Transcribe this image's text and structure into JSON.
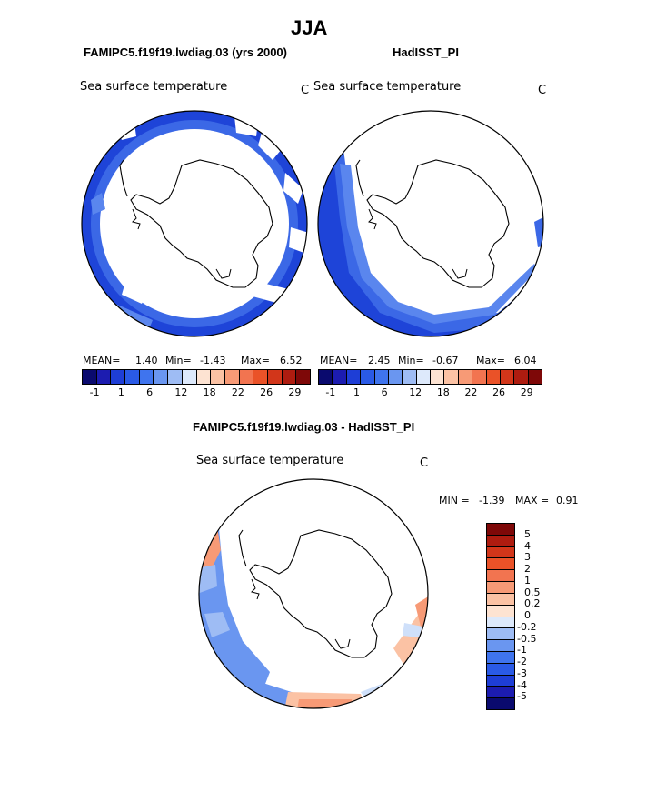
{
  "title": "JJA",
  "panel_left": {
    "header": "FAMIPC5.f19f19.lwdiag.03 (yrs 2000)",
    "field": "Sea surface temperature",
    "units": "C",
    "mean_label": "MEAN=",
    "mean": "1.40",
    "min_label": "Min=",
    "min": "-1.43",
    "max_label": "Max=",
    "max": "6.52"
  },
  "panel_right": {
    "header": "HadISST_PI",
    "field": "Sea surface temperature",
    "units": "C",
    "mean_label": "MEAN=",
    "mean": "2.45",
    "min_label": "Min=",
    "min": "-0.67",
    "max_label": "Max=",
    "max": "6.04"
  },
  "panel_diff": {
    "header": "FAMIPC5.f19f19.lwdiag.03 - HadISST_PI",
    "field": "Sea surface temperature",
    "units": "C",
    "min_label": "MIN =",
    "min": "-1.39",
    "max_label": "MAX =",
    "max": "0.91"
  },
  "abs_colorbar": {
    "colors": [
      "#0a0a6e",
      "#1c1cb0",
      "#1e3ed6",
      "#2a5ae6",
      "#3f74ee",
      "#6a96f0",
      "#9ebcf4",
      "#dde9fb",
      "#fde3d2",
      "#fbc2a4",
      "#f79a76",
      "#f27450",
      "#ea5228",
      "#d2361a",
      "#ae1c10",
      "#7e0808"
    ],
    "ticks": [
      "-1",
      "1",
      "6",
      "12",
      "18",
      "22",
      "26",
      "29"
    ]
  },
  "diff_colorbar": {
    "colors": [
      "#7e0808",
      "#ae1c10",
      "#d2361a",
      "#ea5228",
      "#f27450",
      "#f79a76",
      "#fbc2a4",
      "#fde3d2",
      "#dde9fb",
      "#9ebcf4",
      "#6a96f0",
      "#3f74ee",
      "#2a5ae6",
      "#1e3ed6",
      "#1c1cb0",
      "#0a0a6e"
    ],
    "ticks": [
      "5",
      "4",
      "3",
      "2",
      "1",
      "0.5",
      "0.2",
      "0",
      "-0.2",
      "-0.5",
      "-1",
      "-2",
      "-3",
      "-4",
      "-5"
    ]
  },
  "colors": {
    "sst_deep": "#1e44d8",
    "sst_mid": "#3b68e6",
    "sst_light": "#5a86ee",
    "diff_blue": "#6a96f0",
    "diff_lightblue": "#9ebcf4",
    "diff_pale": "#cfe0fa",
    "diff_orange": "#f79a76",
    "diff_peach": "#fbc2a4"
  }
}
